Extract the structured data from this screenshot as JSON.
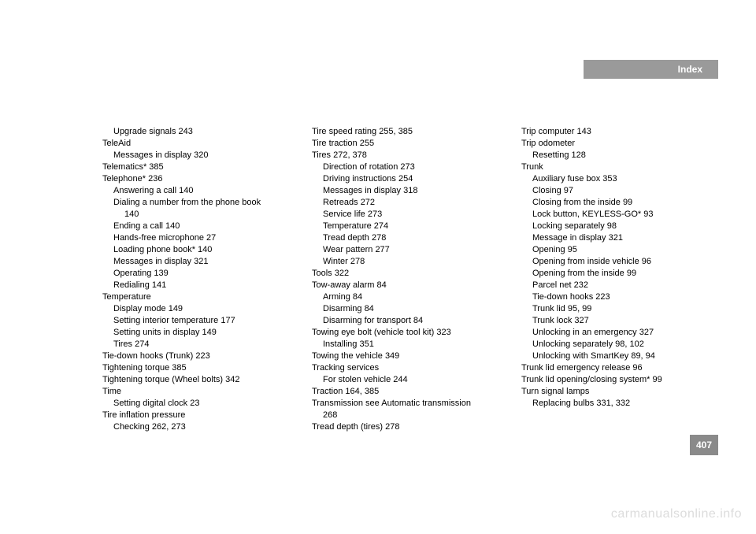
{
  "header": {
    "label": "Index"
  },
  "pageNumber": "407",
  "watermark": "carmanualsonline.info",
  "columns": [
    [
      {
        "type": "sub",
        "text": "Upgrade signals 243"
      },
      {
        "type": "main",
        "text": "TeleAid"
      },
      {
        "type": "sub",
        "text": "Messages in display 320"
      },
      {
        "type": "main",
        "text": "Telematics* 385"
      },
      {
        "type": "main",
        "text": "Telephone* 236"
      },
      {
        "type": "sub",
        "text": "Answering a call 140"
      },
      {
        "type": "sub",
        "text": "Dialing a number from the phone book"
      },
      {
        "type": "subsub",
        "text": "140"
      },
      {
        "type": "sub",
        "text": "Ending a call 140"
      },
      {
        "type": "sub",
        "text": "Hands-free microphone 27"
      },
      {
        "type": "sub",
        "text": "Loading phone book* 140"
      },
      {
        "type": "sub",
        "text": "Messages in display 321"
      },
      {
        "type": "sub",
        "text": "Operating 139"
      },
      {
        "type": "sub",
        "text": "Redialing 141"
      },
      {
        "type": "main",
        "text": "Temperature"
      },
      {
        "type": "sub",
        "text": "Display mode 149"
      },
      {
        "type": "sub",
        "text": "Setting interior temperature 177"
      },
      {
        "type": "sub",
        "text": "Setting units in display 149"
      },
      {
        "type": "sub",
        "text": "Tires 274"
      },
      {
        "type": "main",
        "text": "Tie-down hooks (Trunk) 223"
      },
      {
        "type": "main",
        "text": "Tightening torque 385"
      },
      {
        "type": "main",
        "text": "Tightening torque (Wheel bolts) 342"
      },
      {
        "type": "main",
        "text": "Time"
      },
      {
        "type": "sub",
        "text": "Setting digital clock 23"
      },
      {
        "type": "main",
        "text": "Tire inflation pressure"
      },
      {
        "type": "sub",
        "text": "Checking 262, 273"
      }
    ],
    [
      {
        "type": "main",
        "text": "Tire speed rating 255, 385"
      },
      {
        "type": "main",
        "text": "Tire traction 255"
      },
      {
        "type": "main",
        "text": "Tires 272, 378"
      },
      {
        "type": "sub",
        "text": "Direction of rotation 273"
      },
      {
        "type": "sub",
        "text": "Driving instructions 254"
      },
      {
        "type": "sub",
        "text": "Messages in display 318"
      },
      {
        "type": "sub",
        "text": "Retreads 272"
      },
      {
        "type": "sub",
        "text": "Service life 273"
      },
      {
        "type": "sub",
        "text": "Temperature 274"
      },
      {
        "type": "sub",
        "text": "Tread depth 278"
      },
      {
        "type": "sub",
        "text": "Wear pattern 277"
      },
      {
        "type": "sub",
        "text": "Winter 278"
      },
      {
        "type": "main",
        "text": "Tools 322"
      },
      {
        "type": "main",
        "text": "Tow-away alarm 84"
      },
      {
        "type": "sub",
        "text": "Arming 84"
      },
      {
        "type": "sub",
        "text": "Disarming 84"
      },
      {
        "type": "sub",
        "text": "Disarming for transport 84"
      },
      {
        "type": "main",
        "text": "Towing eye bolt (vehicle tool kit) 323"
      },
      {
        "type": "sub",
        "text": "Installing 351"
      },
      {
        "type": "main",
        "text": "Towing the vehicle 349"
      },
      {
        "type": "main",
        "text": "Tracking services"
      },
      {
        "type": "sub",
        "text": "For stolen vehicle 244"
      },
      {
        "type": "main",
        "text": "Traction 164, 385"
      },
      {
        "type": "main",
        "text": "Transmission see Automatic transmission"
      },
      {
        "type": "sub",
        "text": "268"
      },
      {
        "type": "main",
        "text": "Tread depth (tires) 278"
      }
    ],
    [
      {
        "type": "main",
        "text": "Trip computer 143"
      },
      {
        "type": "main",
        "text": "Trip odometer"
      },
      {
        "type": "sub",
        "text": "Resetting 128"
      },
      {
        "type": "main",
        "text": "Trunk"
      },
      {
        "type": "sub",
        "text": "Auxiliary fuse box 353"
      },
      {
        "type": "sub",
        "text": "Closing 97"
      },
      {
        "type": "sub",
        "text": "Closing from the inside 99"
      },
      {
        "type": "sub",
        "text": "Lock button, KEYLESS-GO* 93"
      },
      {
        "type": "sub",
        "text": "Locking separately 98"
      },
      {
        "type": "sub",
        "text": "Message in display 321"
      },
      {
        "type": "sub",
        "text": "Opening 95"
      },
      {
        "type": "sub",
        "text": "Opening from inside vehicle 96"
      },
      {
        "type": "sub",
        "text": "Opening from the inside 99"
      },
      {
        "type": "sub",
        "text": "Parcel net 232"
      },
      {
        "type": "sub",
        "text": "Tie-down hooks 223"
      },
      {
        "type": "sub",
        "text": "Trunk lid 95, 99"
      },
      {
        "type": "sub",
        "text": "Trunk lock 327"
      },
      {
        "type": "sub",
        "text": "Unlocking in an emergency 327"
      },
      {
        "type": "sub",
        "text": "Unlocking separately 98, 102"
      },
      {
        "type": "sub",
        "text": "Unlocking with SmartKey 89, 94"
      },
      {
        "type": "main",
        "text": "Trunk lid emergency release 96"
      },
      {
        "type": "main",
        "text": "Trunk lid opening/closing system* 99"
      },
      {
        "type": "main",
        "text": "Turn signal lamps"
      },
      {
        "type": "sub",
        "text": "Replacing bulbs 331, 332"
      }
    ]
  ]
}
